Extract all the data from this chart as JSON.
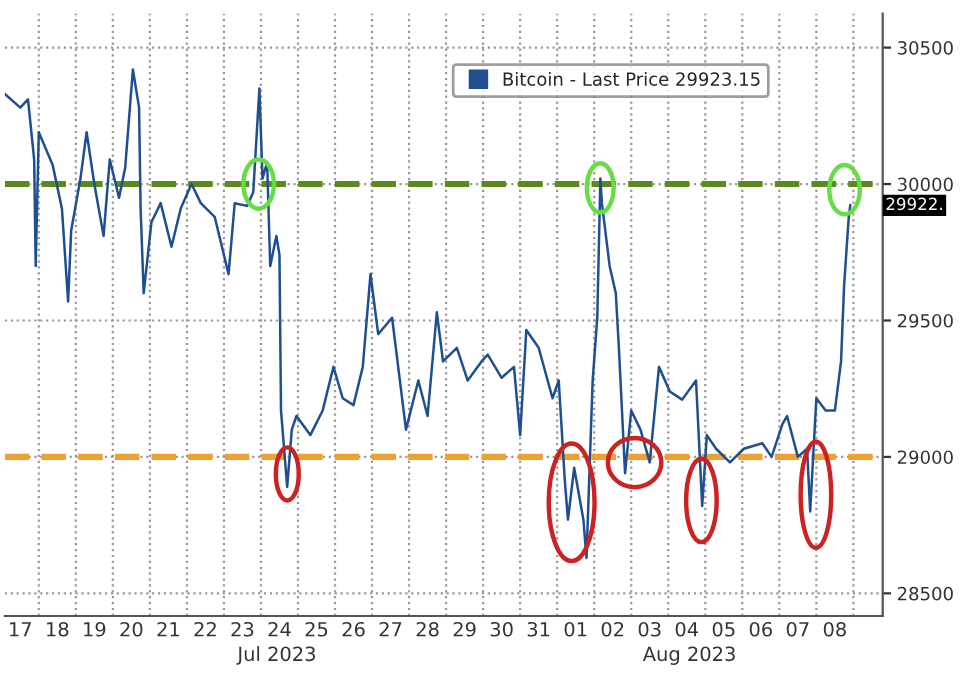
{
  "chart_data": {
    "type": "line",
    "x": [
      "2023-07-17T02:00",
      "2023-07-17T12:00",
      "2023-07-17T17:00",
      "2023-07-17T21:00",
      "2023-07-17T22:00",
      "2023-07-18T00:00",
      "2023-07-18T09:00",
      "2023-07-18T15:00",
      "2023-07-18T19:00",
      "2023-07-18T21:00",
      "2023-07-19T03:00",
      "2023-07-19T07:00",
      "2023-07-19T12:00",
      "2023-07-19T18:00",
      "2023-07-19T22:00",
      "2023-07-20T04:00",
      "2023-07-20T08:00",
      "2023-07-20T13:00",
      "2023-07-20T17:00",
      "2023-07-20T18:00",
      "2023-07-20T20:00",
      "2023-07-21T01:00",
      "2023-07-21T07:00",
      "2023-07-21T14:00",
      "2023-07-21T20:00",
      "2023-07-22T03:00",
      "2023-07-22T09:00",
      "2023-07-22T18:00",
      "2023-07-23T03:00",
      "2023-07-23T07:00",
      "2023-07-23T15:00",
      "2023-07-23T19:00",
      "2023-07-23T23:00",
      "2023-07-24T01:00",
      "2023-07-24T04:00",
      "2023-07-24T06:00",
      "2023-07-24T10:00",
      "2023-07-24T12:00",
      "2023-07-24T13:00",
      "2023-07-24T17:00",
      "2023-07-24T20:00",
      "2023-07-24T23:00",
      "2023-07-25T08:00",
      "2023-07-25T16:00",
      "2023-07-25T23:00",
      "2023-07-26T05:00",
      "2023-07-26T12:00",
      "2023-07-26T18:00",
      "2023-07-26T23:00",
      "2023-07-27T04:00",
      "2023-07-27T13:00",
      "2023-07-27T22:00",
      "2023-07-28T06:00",
      "2023-07-28T12:00",
      "2023-07-28T18:00",
      "2023-07-28T22:00",
      "2023-07-29T07:00",
      "2023-07-29T14:00",
      "2023-07-29T23:00",
      "2023-07-30T03:00",
      "2023-07-30T12:00",
      "2023-07-30T20:00",
      "2023-07-31T00:00",
      "2023-07-31T04:00",
      "2023-07-31T12:00",
      "2023-07-31T21:00",
      "2023-08-01T01:00",
      "2023-08-01T05:00",
      "2023-08-01T07:00",
      "2023-08-01T11:00",
      "2023-08-01T17:00",
      "2023-08-01T19:00",
      "2023-08-01T23:00",
      "2023-08-02T02:00",
      "2023-08-02T04:00",
      "2023-08-02T05:00",
      "2023-08-02T10:00",
      "2023-08-02T14:00",
      "2023-08-02T16:00",
      "2023-08-02T20:00",
      "2023-08-03T00:00",
      "2023-08-03T06:00",
      "2023-08-03T12:00",
      "2023-08-03T18:00",
      "2023-08-04T01:00",
      "2023-08-04T09:00",
      "2023-08-04T18:00",
      "2023-08-04T22:00",
      "2023-08-05T01:00",
      "2023-08-05T07:00",
      "2023-08-05T16:00",
      "2023-08-06T01:00",
      "2023-08-06T13:00",
      "2023-08-06T19:00",
      "2023-08-07T02:00",
      "2023-08-07T05:00",
      "2023-08-07T12:00",
      "2023-08-07T18:00",
      "2023-08-07T20:00",
      "2023-08-08T00:00",
      "2023-08-08T06:00",
      "2023-08-08T12:00",
      "2023-08-08T16:00",
      "2023-08-08T18:00",
      "2023-08-08T21:00",
      "2023-08-08T22:00"
    ],
    "series": [
      {
        "name": "Bitcoin - Last Price 29923.15",
        "color": "#1f4f8f",
        "values": [
          30330,
          30280,
          30310,
          30090,
          29700,
          30190,
          30070,
          29910,
          29570,
          29830,
          30020,
          30190,
          30000,
          29810,
          30090,
          29950,
          30060,
          30420,
          30280,
          29910,
          29600,
          29860,
          29930,
          29770,
          29910,
          30000,
          29930,
          29880,
          29670,
          29930,
          29920,
          29970,
          30350,
          30020,
          30080,
          29700,
          29810,
          29740,
          29170,
          28890,
          29100,
          29150,
          29080,
          29170,
          29330,
          29215,
          29190,
          29330,
          29670,
          29450,
          29510,
          29100,
          29280,
          29150,
          29530,
          29350,
          29400,
          29280,
          29350,
          29375,
          29290,
          29330,
          29080,
          29465,
          29400,
          29215,
          29280,
          28910,
          28770,
          28960,
          28770,
          28630,
          29280,
          29510,
          30020,
          29930,
          29700,
          29600,
          29400,
          28940,
          29170,
          29100,
          28980,
          29330,
          29240,
          29210,
          29280,
          28820,
          29080,
          29030,
          28980,
          29030,
          29050,
          29000,
          29120,
          29150,
          29000,
          29030,
          28800,
          29215,
          29170,
          29170,
          29350,
          29630,
          29880,
          29923
        ]
      }
    ],
    "xlim": [
      "2023-07-17T02:00",
      "2023-08-09T19:00"
    ],
    "xticks": [
      {
        "value": "2023-07-17T12:00",
        "label": "17"
      },
      {
        "value": "2023-07-18T12:00",
        "label": "18"
      },
      {
        "value": "2023-07-19T12:00",
        "label": "19"
      },
      {
        "value": "2023-07-20T12:00",
        "label": "20"
      },
      {
        "value": "2023-07-21T12:00",
        "label": "21"
      },
      {
        "value": "2023-07-22T12:00",
        "label": "22"
      },
      {
        "value": "2023-07-23T12:00",
        "label": "23"
      },
      {
        "value": "2023-07-24T12:00",
        "label": "24"
      },
      {
        "value": "2023-07-25T12:00",
        "label": "25"
      },
      {
        "value": "2023-07-26T12:00",
        "label": "26"
      },
      {
        "value": "2023-07-27T12:00",
        "label": "27"
      },
      {
        "value": "2023-07-28T12:00",
        "label": "28"
      },
      {
        "value": "2023-07-29T12:00",
        "label": "29"
      },
      {
        "value": "2023-07-30T12:00",
        "label": "30"
      },
      {
        "value": "2023-07-31T12:00",
        "label": "31"
      },
      {
        "value": "2023-08-01T12:00",
        "label": "01"
      },
      {
        "value": "2023-08-02T12:00",
        "label": "02"
      },
      {
        "value": "2023-08-03T12:00",
        "label": "03"
      },
      {
        "value": "2023-08-04T12:00",
        "label": "04"
      },
      {
        "value": "2023-08-05T12:00",
        "label": "05"
      },
      {
        "value": "2023-08-06T12:00",
        "label": "06"
      },
      {
        "value": "2023-08-07T12:00",
        "label": "07"
      },
      {
        "value": "2023-08-08T12:00",
        "label": "08"
      }
    ],
    "ylim": [
      28417,
      30625
    ],
    "yticks": [
      28500,
      29000,
      29500,
      30000,
      30500
    ],
    "ref_lines": [
      {
        "axis": "y",
        "value": 30000,
        "color": "#5a8a1e",
        "line_style": "dashed"
      },
      {
        "axis": "y",
        "value": 29000,
        "color": "#f0a030",
        "line_style": "dashed"
      }
    ],
    "annotations": [
      "Jul 2023",
      "Aug 2023",
      {
        "text": "29922.",
        "y": 29922
      }
    ],
    "grid": true,
    "legend": "top right",
    "line_style": "solid",
    "marker": "none"
  }
}
